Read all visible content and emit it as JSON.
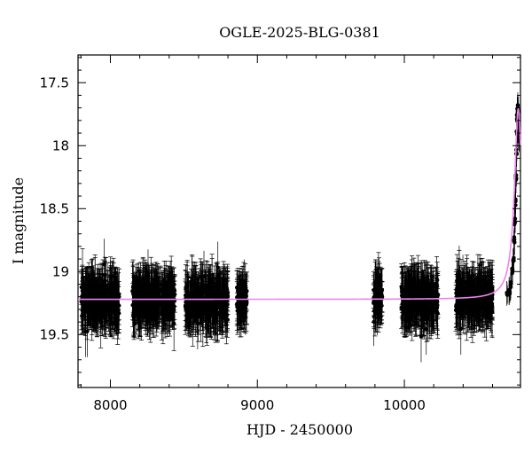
{
  "chart_data": {
    "type": "scatter",
    "title": "OGLE-2025-BLG-0381",
    "xlabel": "HJD - 2450000",
    "ylabel": "I magnitude",
    "xlim": [
      7780,
      10790
    ],
    "ylim": [
      19.92,
      17.28
    ],
    "y_inverted": true,
    "x_ticks": [
      8000,
      9000,
      10000
    ],
    "y_ticks": [
      17.5,
      18,
      18.5,
      19,
      19.5
    ],
    "x_tick_labels": [
      "8000",
      "9000",
      "10000"
    ],
    "y_tick_labels": [
      "17.5",
      "18",
      "18.5",
      "19",
      "19.5"
    ],
    "grid": false,
    "legend": "none",
    "colors": {
      "points": "#000000",
      "model": "#ee82ee"
    },
    "series": [
      {
        "kind": "points_with_errorbars",
        "seasons": [
          {
            "x_range": [
              7800,
              8060
            ],
            "mag_mean": 19.22,
            "mag_spread": 0.12,
            "err": 0.17
          },
          {
            "x_range": [
              8150,
              8440
            ],
            "mag_mean": 19.22,
            "mag_spread": 0.12,
            "err": 0.17
          },
          {
            "x_range": [
              8510,
              8800
            ],
            "mag_mean": 19.23,
            "mag_spread": 0.12,
            "err": 0.17
          },
          {
            "x_range": [
              8860,
              8930
            ],
            "mag_mean": 19.22,
            "mag_spread": 0.1,
            "err": 0.16
          },
          {
            "x_range": [
              9790,
              9850
            ],
            "mag_mean": 19.2,
            "mag_spread": 0.11,
            "err": 0.16
          },
          {
            "x_range": [
              9980,
              10230
            ],
            "mag_mean": 19.22,
            "mag_spread": 0.12,
            "err": 0.17
          },
          {
            "x_range": [
              10350,
              10600
            ],
            "mag_mean": 19.2,
            "mag_spread": 0.11,
            "err": 0.17
          }
        ],
        "rise": [
          [
            10700,
            19.18
          ],
          [
            10715,
            19.15
          ],
          [
            10725,
            19.1
          ],
          [
            10735,
            19.0
          ],
          [
            10742,
            18.9
          ],
          [
            10748,
            18.75
          ],
          [
            10752,
            18.6
          ],
          [
            10756,
            18.45
          ],
          [
            10760,
            18.25
          ],
          [
            10763,
            18.05
          ],
          [
            10766,
            17.9
          ],
          [
            10768,
            17.78
          ],
          [
            10770,
            17.7
          ],
          [
            10773,
            17.72
          ],
          [
            10776,
            17.8
          ],
          [
            10779,
            17.95
          ]
        ]
      },
      {
        "kind": "model_curve",
        "baseline_mag": 19.22,
        "peak_x": 10775,
        "peak_mag": 17.7
      }
    ]
  }
}
